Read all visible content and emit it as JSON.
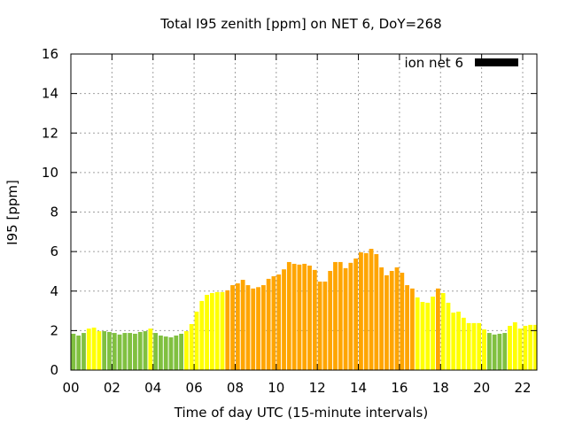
{
  "chart_data": {
    "type": "bar",
    "title": "Total I95 zenith [ppm] on NET 6, DoY=268",
    "xlabel": "Time of day UTC (15-minute intervals)",
    "ylabel": "I95 [ppm]",
    "ylim": [
      0,
      16
    ],
    "xlim_hours": [
      0,
      22.75
    ],
    "grid": true,
    "legend": {
      "entries": [
        {
          "label": "ion net 6",
          "color": "#000000"
        }
      ],
      "placement": "top-right"
    },
    "y_ticks": [
      "0",
      "2",
      "4",
      "6",
      "8",
      "10",
      "12",
      "14",
      "16"
    ],
    "x_ticks": [
      "00",
      "02",
      "04",
      "06",
      "08",
      "10",
      "12",
      "14",
      "16",
      "18",
      "20",
      "22"
    ],
    "interval_minutes": 15,
    "color_levels": {
      "green": "#80c040",
      "yellow": "#ffff00",
      "orange": "#ffa500"
    },
    "values": [
      1.84,
      1.75,
      1.88,
      2.1,
      2.15,
      1.97,
      1.97,
      1.93,
      1.88,
      1.8,
      1.88,
      1.88,
      1.84,
      1.93,
      1.97,
      2.1,
      1.88,
      1.75,
      1.7,
      1.66,
      1.75,
      1.84,
      1.97,
      2.33,
      2.96,
      3.5,
      3.81,
      3.9,
      3.95,
      3.95,
      4.04,
      4.3,
      4.39,
      4.57,
      4.3,
      4.13,
      4.2,
      4.3,
      4.62,
      4.75,
      4.84,
      5.1,
      5.47,
      5.38,
      5.34,
      5.38,
      5.29,
      5.07,
      4.48,
      4.48,
      5.02,
      5.47,
      5.47,
      5.16,
      5.43,
      5.65,
      5.96,
      5.92,
      6.14,
      5.87,
      5.2,
      4.8,
      5.02,
      5.2,
      4.93,
      4.3,
      4.13,
      3.68,
      3.45,
      3.41,
      3.72,
      4.13,
      3.9,
      3.41,
      2.91,
      2.96,
      2.65,
      2.38,
      2.38,
      2.38,
      2.06,
      1.88,
      1.8,
      1.84,
      1.88,
      2.24,
      2.42,
      2.1,
      2.24,
      2.29,
      2.29,
      2.38
    ],
    "colors": [
      "green",
      "green",
      "green",
      "yellow",
      "yellow",
      "yellow",
      "green",
      "green",
      "green",
      "green",
      "green",
      "green",
      "green",
      "green",
      "green",
      "yellow",
      "green",
      "green",
      "green",
      "green",
      "green",
      "green",
      "yellow",
      "yellow",
      "yellow",
      "yellow",
      "yellow",
      "yellow",
      "yellow",
      "yellow",
      "orange",
      "orange",
      "orange",
      "orange",
      "orange",
      "orange",
      "orange",
      "orange",
      "orange",
      "orange",
      "orange",
      "orange",
      "orange",
      "orange",
      "orange",
      "orange",
      "orange",
      "orange",
      "orange",
      "orange",
      "orange",
      "orange",
      "orange",
      "orange",
      "orange",
      "orange",
      "orange",
      "orange",
      "orange",
      "orange",
      "orange",
      "orange",
      "orange",
      "orange",
      "orange",
      "orange",
      "orange",
      "yellow",
      "yellow",
      "yellow",
      "yellow",
      "orange",
      "yellow",
      "yellow",
      "yellow",
      "yellow",
      "yellow",
      "yellow",
      "yellow",
      "yellow",
      "yellow",
      "green",
      "green",
      "green",
      "green",
      "yellow",
      "yellow",
      "yellow",
      "yellow",
      "yellow",
      "yellow",
      "yellow"
    ]
  }
}
